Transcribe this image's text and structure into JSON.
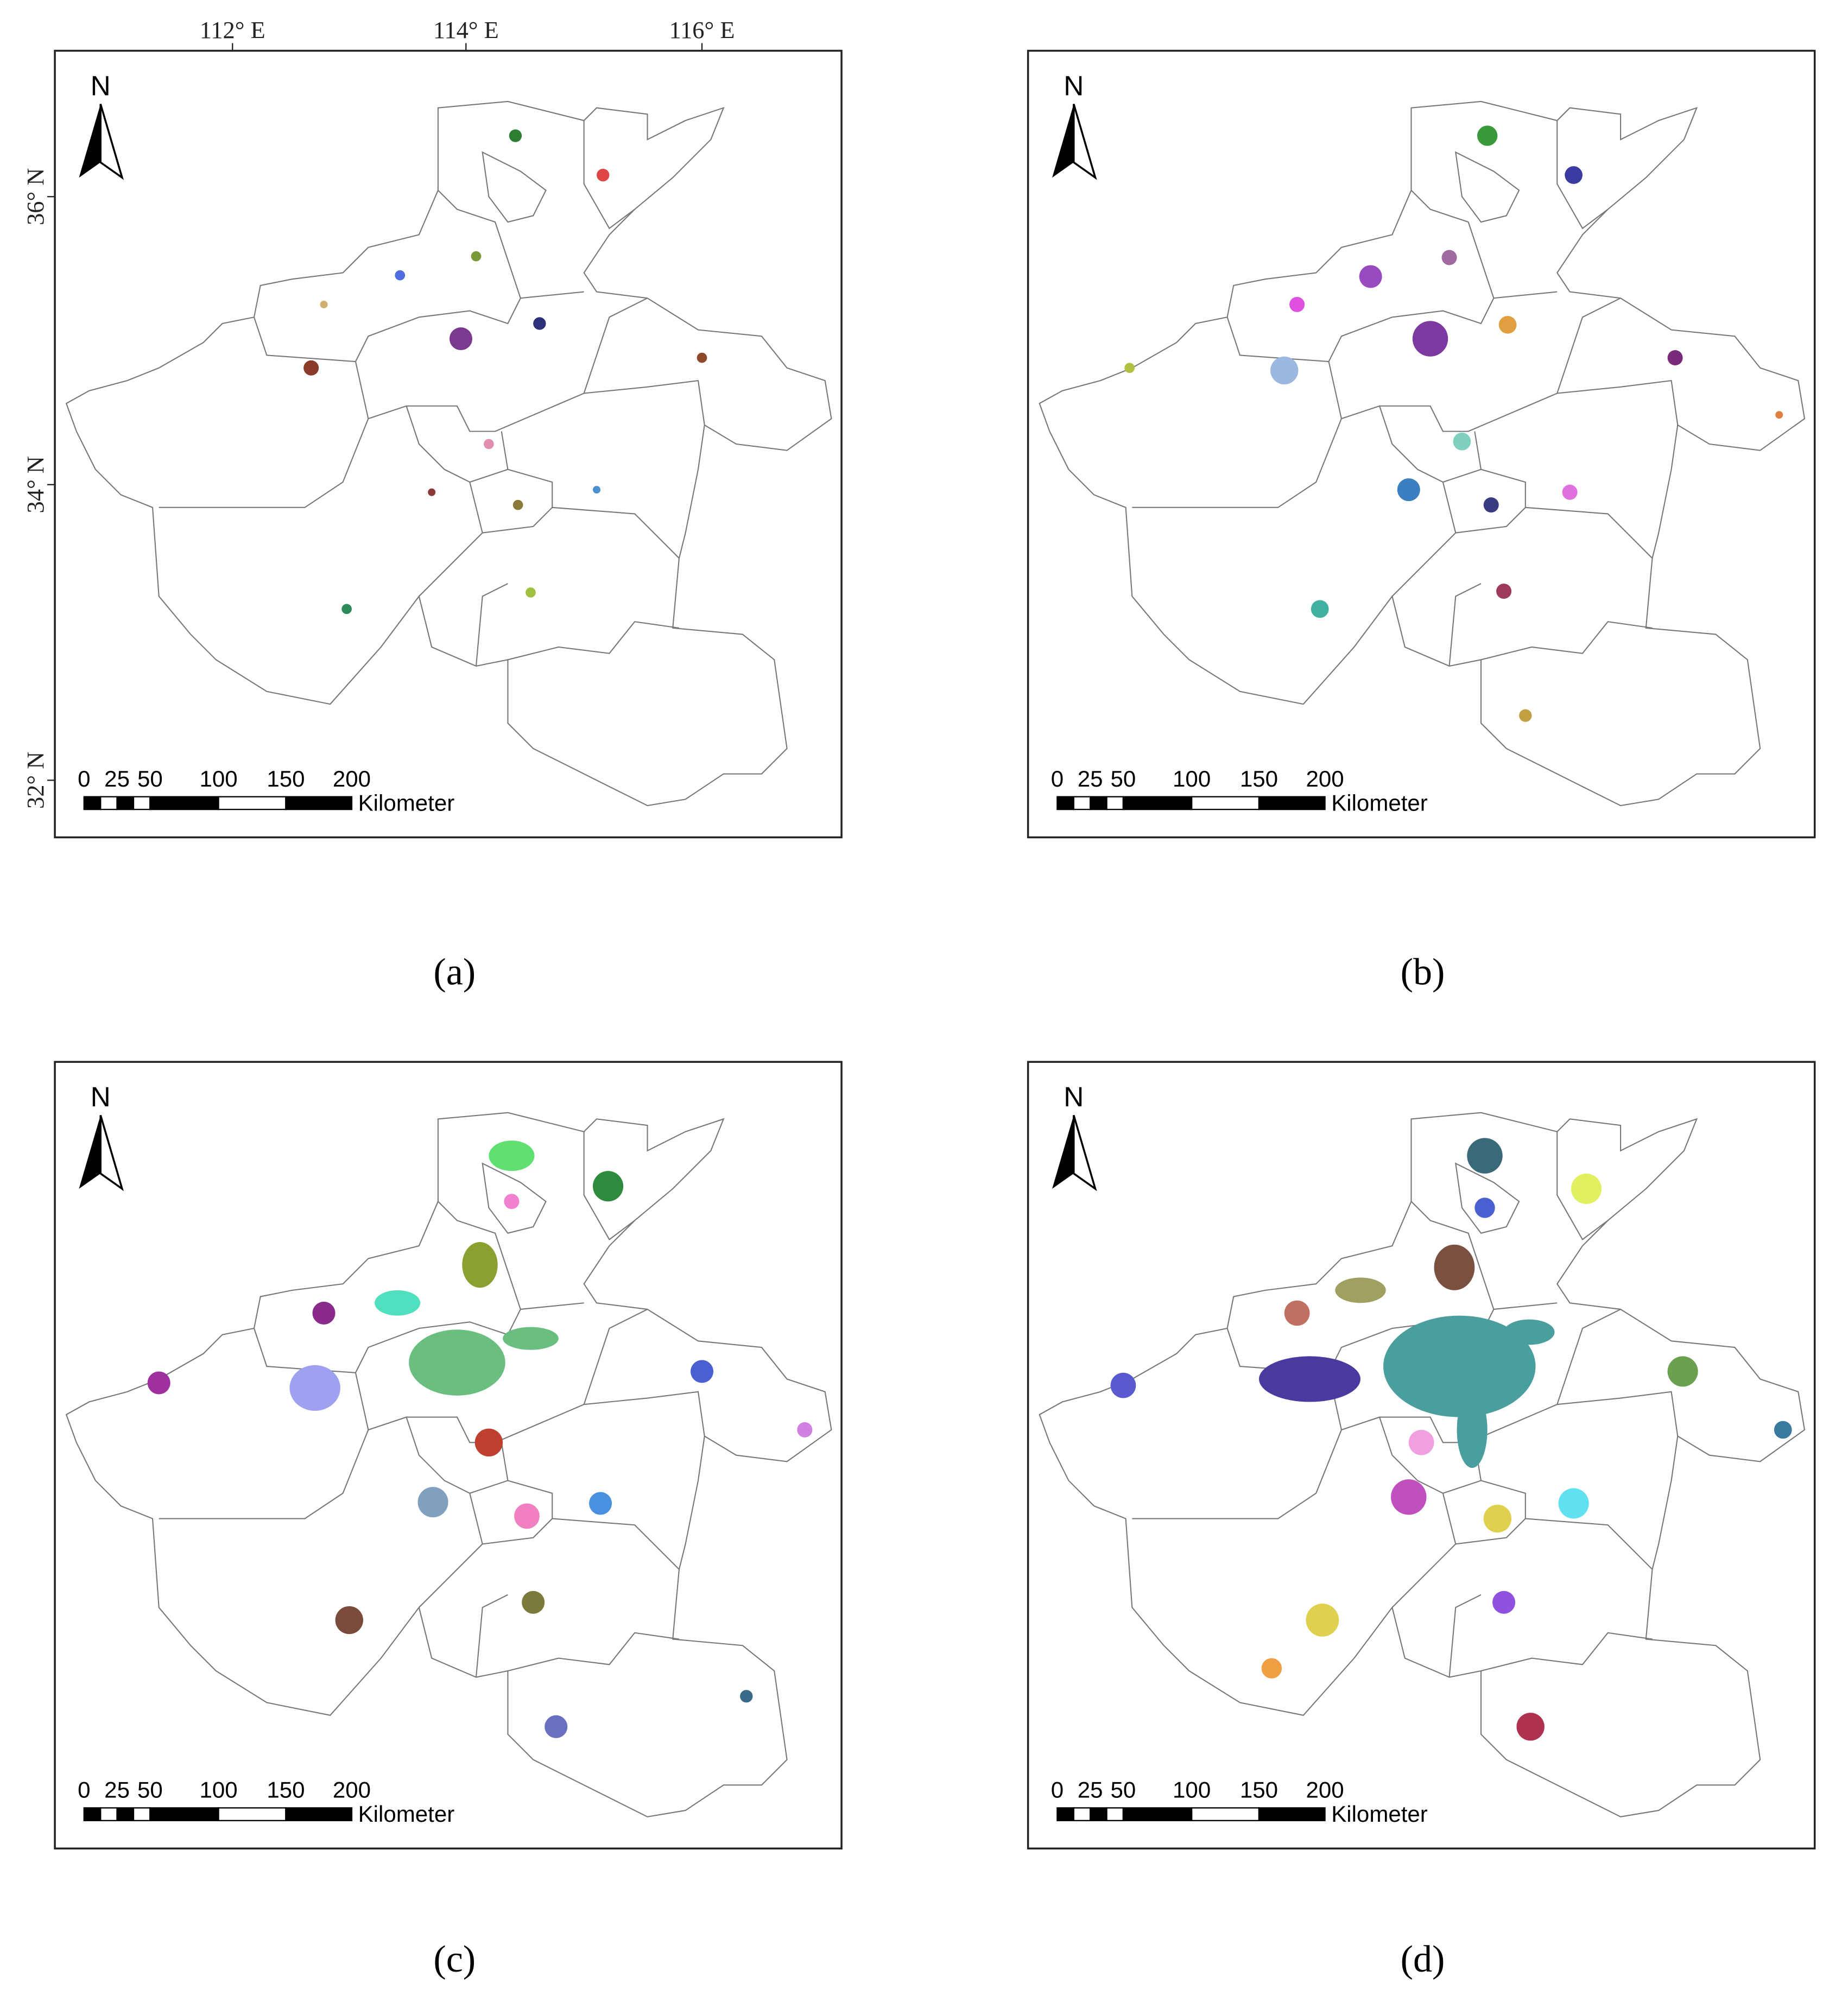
{
  "axes": {
    "lon": [
      "112° E",
      "114° E",
      "116° E"
    ],
    "lat": [
      "36° N",
      "34° N",
      "32° N"
    ]
  },
  "north": "N",
  "scale": {
    "ticks": [
      "0",
      "25",
      "50",
      "100",
      "150",
      "200"
    ],
    "unit": "Kilometer"
  },
  "panels": [
    "(a)",
    "(b)",
    "(c)",
    "(d)"
  ]
}
